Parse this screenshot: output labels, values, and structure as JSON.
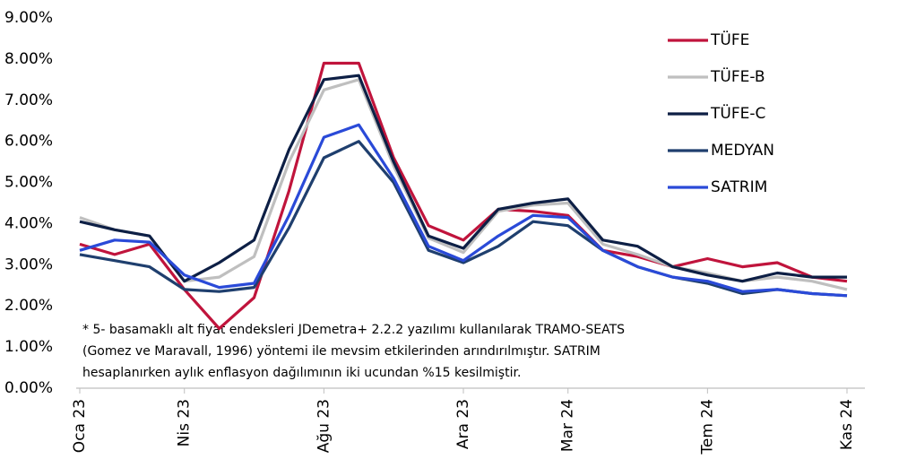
{
  "chart_data": {
    "type": "line",
    "categories": [
      "Oca 23",
      null,
      null,
      "Nis 23",
      null,
      null,
      null,
      "Ağu 23",
      null,
      null,
      null,
      "Ara 23",
      null,
      null,
      "Mar 24",
      null,
      null,
      null,
      "Tem 24",
      null,
      null,
      null,
      "Kas 24"
    ],
    "series": [
      {
        "name": "TÜFE",
        "color": "#c0143c",
        "values": [
          3.5,
          3.25,
          3.5,
          2.4,
          1.45,
          2.2,
          4.8,
          7.9,
          7.9,
          5.6,
          3.95,
          3.6,
          4.35,
          4.3,
          4.2,
          3.35,
          3.2,
          2.95,
          3.15,
          2.95,
          3.05,
          2.7,
          2.6
        ]
      },
      {
        "name": "TÜFE-B",
        "color": "#bfbfbf",
        "values": [
          4.15,
          3.85,
          3.7,
          2.6,
          2.7,
          3.2,
          5.5,
          7.25,
          7.5,
          5.4,
          3.65,
          3.3,
          4.3,
          4.45,
          4.5,
          3.5,
          3.25,
          2.95,
          2.8,
          2.6,
          2.7,
          2.6,
          2.4
        ]
      },
      {
        "name": "TÜFE-C",
        "color": "#0d1f45",
        "values": [
          4.05,
          3.85,
          3.7,
          2.6,
          3.05,
          3.6,
          5.8,
          7.5,
          7.6,
          5.5,
          3.7,
          3.4,
          4.35,
          4.5,
          4.6,
          3.6,
          3.45,
          2.95,
          2.75,
          2.6,
          2.8,
          2.7,
          2.7
        ]
      },
      {
        "name": "MEDYAN",
        "color": "#1f3f6e",
        "values": [
          3.25,
          3.1,
          2.95,
          2.4,
          2.35,
          2.45,
          3.9,
          5.6,
          6.0,
          5.0,
          3.35,
          3.05,
          3.45,
          4.05,
          3.95,
          3.35,
          2.95,
          2.7,
          2.55,
          2.3,
          2.4,
          2.3,
          2.25
        ]
      },
      {
        "name": "SATRIM",
        "color": "#2a4ad8",
        "values": [
          3.35,
          3.6,
          3.55,
          2.75,
          2.45,
          2.55,
          4.2,
          6.1,
          6.4,
          5.1,
          3.45,
          3.1,
          3.7,
          4.2,
          4.15,
          3.35,
          2.95,
          2.7,
          2.6,
          2.35,
          2.4,
          2.3,
          2.25
        ]
      }
    ],
    "ylim": [
      0,
      9
    ],
    "yticks": [
      {
        "value": 0,
        "label": "0.00%"
      },
      {
        "value": 1,
        "label": "1.00%"
      },
      {
        "value": 2,
        "label": "2.00%"
      },
      {
        "value": 3,
        "label": "3.00%"
      },
      {
        "value": 4,
        "label": "4.00%"
      },
      {
        "value": 5,
        "label": "5.00%"
      },
      {
        "value": 6,
        "label": "6.00%"
      },
      {
        "value": 7,
        "label": "7.00%"
      },
      {
        "value": 8,
        "label": "8.00%"
      },
      {
        "value": 9,
        "label": "9.00%"
      }
    ],
    "grid": false,
    "legend": "right",
    "annotations": [
      "* 5- basamaklı alt fiyat endeksleri JDemetra+ 2.2.2 yazılımı kullanılarak TRAMO-SEATS",
      "(Gomez ve Maravall, 1996) yöntemi ile mevsim etkilerinden arındırılmıştır. SATRIM",
      "hesaplanırken aylık enflasyon dağılımının  iki ucundan %15 kesilmiştir."
    ]
  }
}
